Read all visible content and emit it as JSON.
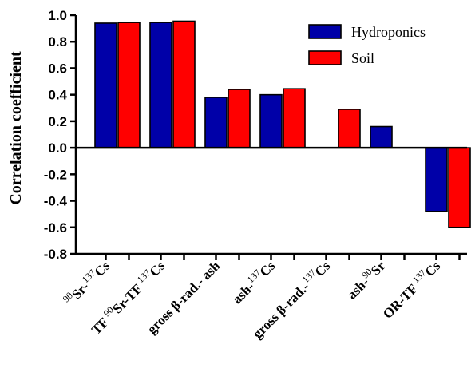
{
  "chart_data": {
    "type": "bar",
    "ylabel": "Correlation coefficient",
    "xlabel": "",
    "ylim": [
      -0.8,
      1.0
    ],
    "yticks": [
      "-0.8",
      "-0.6",
      "-0.4",
      "-0.2",
      "0.0",
      "0.2",
      "0.4",
      "0.6",
      "0.8",
      "1.0"
    ],
    "legend_position": "top-right",
    "categories": [
      "90Sr-137Cs",
      "TF 90Sr-TF 137Cs",
      "gross β-rad.- ash",
      "ash-137Cs",
      "gross β-rad.-137Cs",
      "ash-90Sr",
      "OR-TF 137Cs"
    ],
    "category_labels": [
      [
        {
          "t": "90",
          "sup": true
        },
        {
          "t": "Sr-",
          "sup": false
        },
        {
          "t": "137",
          "sup": true
        },
        {
          "t": "Cs",
          "sup": false
        }
      ],
      [
        {
          "t": "TF ",
          "sup": false
        },
        {
          "t": "90",
          "sup": true
        },
        {
          "t": "Sr-TF ",
          "sup": false
        },
        {
          "t": "137",
          "sup": true
        },
        {
          "t": "Cs",
          "sup": false
        }
      ],
      [
        {
          "t": "gross β-rad.- ash",
          "sup": false
        }
      ],
      [
        {
          "t": "ash-",
          "sup": false
        },
        {
          "t": "137",
          "sup": true
        },
        {
          "t": "Cs",
          "sup": false
        }
      ],
      [
        {
          "t": "gross β-rad.-",
          "sup": false
        },
        {
          "t": "137",
          "sup": true
        },
        {
          "t": "Cs",
          "sup": false
        }
      ],
      [
        {
          "t": "ash-",
          "sup": false
        },
        {
          "t": "90",
          "sup": true
        },
        {
          "t": "Sr",
          "sup": false
        }
      ],
      [
        {
          "t": "OR-TF ",
          "sup": false
        },
        {
          "t": "137",
          "sup": true
        },
        {
          "t": "Cs",
          "sup": false
        }
      ]
    ],
    "series": [
      {
        "name": "Hydroponics",
        "color": "#0000a8",
        "values": [
          0.94,
          0.945,
          0.38,
          0.4,
          null,
          0.16,
          -0.48
        ]
      },
      {
        "name": "Soil",
        "color": "#ff0000",
        "values": [
          0.945,
          0.955,
          0.44,
          0.445,
          0.29,
          null,
          -0.6
        ]
      }
    ]
  }
}
